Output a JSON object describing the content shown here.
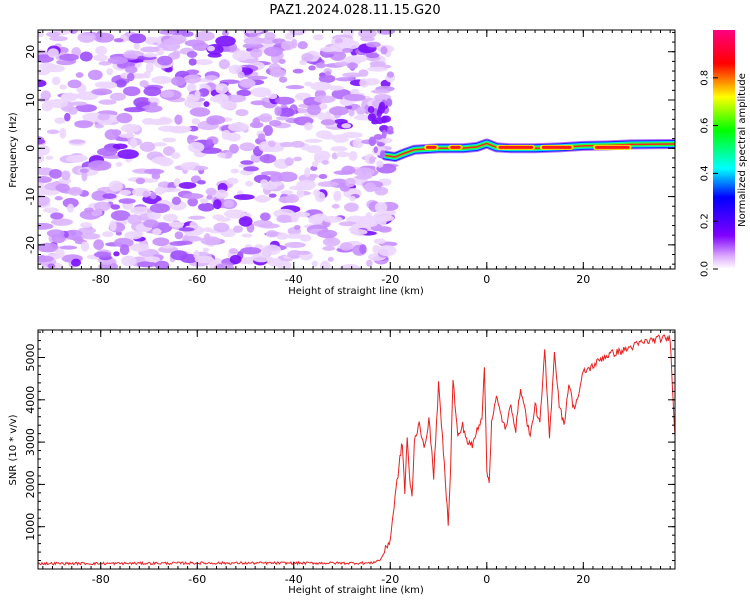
{
  "title": "PAZ1.2024.028.11.15.G20",
  "colors": {
    "snr_line": "#e8211f",
    "axis": "#000000"
  },
  "chart_data": [
    {
      "type": "heatmap",
      "xlabel": "Height of straight line (km)",
      "ylabel": "Frequency (Hz)",
      "xlim": [
        -93,
        39
      ],
      "ylim": [
        -25,
        24.5
      ],
      "xticks": [
        -80,
        -60,
        -40,
        -20,
        0,
        20
      ],
      "xtick_labels": [
        "-80",
        "-60",
        "-40",
        "-20",
        "0",
        "20"
      ],
      "yticks": [
        -20,
        -10,
        0,
        10,
        20
      ],
      "ytick_labels": [
        "-20",
        "-10",
        "0",
        "10",
        "20"
      ],
      "noise_region_x": [
        -93,
        -21
      ],
      "signal_track": {
        "x": [
          -21,
          -19,
          -17,
          -15,
          -10,
          -5,
          -2,
          0,
          2,
          5,
          10,
          15,
          20,
          25,
          30,
          39
        ],
        "freq": [
          -1.5,
          -1.8,
          -1.0,
          -0.3,
          0.0,
          0.0,
          0.3,
          1.0,
          0.2,
          0.0,
          0.0,
          0.2,
          0.5,
          0.6,
          0.8,
          0.9
        ]
      },
      "colorbar": {
        "label": "Normalized spectral amplitude",
        "range": [
          0,
          1
        ],
        "ticks": [
          0.0,
          0.2,
          0.4,
          0.6,
          0.8
        ],
        "tick_labels": [
          "0.0",
          "0.2",
          "0.4",
          "0.6",
          "0.8"
        ]
      }
    },
    {
      "type": "line",
      "xlabel": "Height of straight line (km)",
      "ylabel": "SNR (10 * v/v)",
      "xlim": [
        -93,
        39
      ],
      "ylim": [
        0,
        5650
      ],
      "xticks": [
        -80,
        -60,
        -40,
        -20,
        0,
        20
      ],
      "xtick_labels": [
        "-80",
        "-60",
        "-40",
        "-20",
        "0",
        "20"
      ],
      "yticks": [
        1000,
        2000,
        3000,
        4000,
        5000
      ],
      "ytick_labels": [
        "1000",
        "2000",
        "3000",
        "4000",
        "5000"
      ],
      "series": [
        {
          "x": [
            -93,
            -80,
            -60,
            -40,
            -24,
            -22,
            -20,
            -19,
            -18,
            -17.5,
            -17,
            -16.5,
            -16,
            -15.5,
            -15,
            -14,
            -13,
            -12,
            -11,
            -10,
            -9,
            -8,
            -7.5,
            -7,
            -6,
            -5,
            -4,
            -3,
            -2,
            -1,
            -0.5,
            0,
            0.5,
            1,
            2,
            3,
            4,
            5,
            6,
            7,
            8,
            9,
            10,
            11,
            12,
            13,
            14,
            15,
            16,
            17,
            18,
            19,
            20,
            22,
            24,
            26,
            28,
            30,
            32,
            34,
            36,
            38,
            39
          ],
          "y": [
            130,
            130,
            140,
            140,
            140,
            220,
            700,
            1700,
            2600,
            3000,
            1800,
            3150,
            2100,
            1700,
            3000,
            3500,
            2800,
            3550,
            2200,
            4350,
            2800,
            1100,
            2400,
            4500,
            3100,
            3400,
            3000,
            2900,
            3300,
            3600,
            4850,
            2300,
            2050,
            3500,
            4050,
            3600,
            3300,
            3900,
            3300,
            4300,
            3700,
            3100,
            3900,
            3400,
            5150,
            3100,
            5150,
            3900,
            3400,
            4400,
            3800,
            4100,
            4650,
            4800,
            5000,
            5100,
            5150,
            5250,
            5350,
            5400,
            5450,
            5450,
            3150
          ]
        }
      ]
    }
  ]
}
